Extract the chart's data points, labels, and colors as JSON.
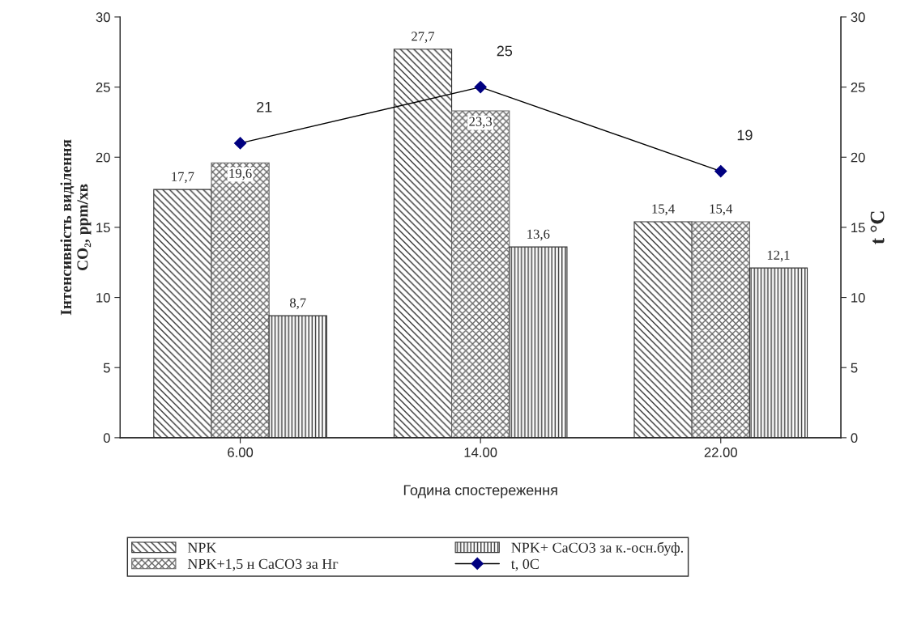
{
  "chart_data": {
    "type": "bar",
    "xlabel": "Година спостереження",
    "ylabel": "Інтенсивність виділення\nCO₂, ppm/хв",
    "y2label": "t °C",
    "categories": [
      "6.00",
      "14.00",
      "22.00"
    ],
    "series": [
      {
        "name": "NPK",
        "color": "#333333",
        "values": [
          17.7,
          27.7,
          15.4
        ],
        "value_labels": [
          "17,7",
          "27,7",
          "15,4"
        ]
      },
      {
        "name": "NPK+1,5 н CaCO3 за Нг",
        "color": "#666666",
        "values": [
          19.6,
          23.3,
          15.4
        ],
        "value_labels": [
          "19,6",
          "23,3",
          "15,4"
        ]
      },
      {
        "name": "NPK+ CaCO3 за к.-осн.буф.",
        "color": "#333333",
        "values": [
          8.7,
          13.6,
          12.1
        ],
        "value_labels": [
          "8,7",
          "13,6",
          "12,1"
        ]
      },
      {
        "name": "t, 0C",
        "type": "line",
        "axis": "y2",
        "color": "#000080",
        "marker": "diamond",
        "values": [
          21,
          25,
          19
        ],
        "value_labels": [
          "21",
          "25",
          "19"
        ]
      }
    ],
    "ylim": [
      0,
      30
    ],
    "yticks": [
      0,
      5,
      10,
      15,
      20,
      25,
      30
    ],
    "y2lim": [
      0,
      30
    ],
    "y2ticks": [
      0,
      5,
      10,
      15,
      20,
      25,
      30
    ],
    "grid": false,
    "legend": "bottom"
  }
}
